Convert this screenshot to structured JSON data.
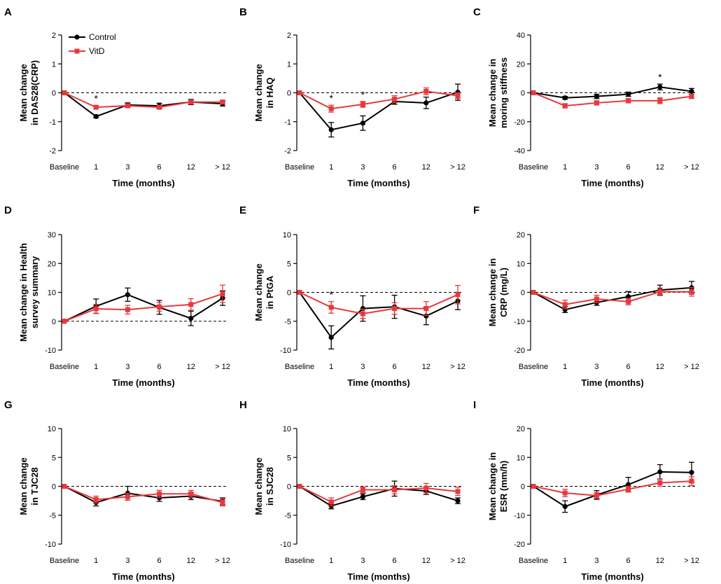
{
  "legend": {
    "control_label": "Control",
    "vitd_label": "VitD"
  },
  "colors": {
    "control": "#000000",
    "vitd": "#e8383d",
    "zero_line": "#000000"
  },
  "chart_data": [
    {
      "type": "line",
      "panel": "A",
      "ylabel_lines": [
        "Mean change",
        "in DAS28(CRP)"
      ],
      "xlabel": "Time (months)",
      "categories": [
        "Baseline",
        "1",
        "3",
        "6",
        "12",
        "> 12"
      ],
      "ylim": [
        -2,
        2
      ],
      "yticks": [
        -2,
        -1,
        0,
        1,
        2
      ],
      "series": [
        {
          "name": "Control",
          "values": [
            0,
            -0.82,
            -0.42,
            -0.45,
            -0.32,
            -0.38
          ],
          "errors": [
            0,
            0.05,
            0.07,
            0.09,
            0.09,
            0.08
          ]
        },
        {
          "name": "VitD",
          "values": [
            0,
            -0.5,
            -0.45,
            -0.5,
            -0.32,
            -0.32
          ],
          "errors": [
            0,
            0.06,
            0.06,
            0.06,
            0.06,
            0.06
          ]
        }
      ],
      "significance": [
        {
          "category": "1",
          "label": "*"
        }
      ],
      "legend_position": "top-left"
    },
    {
      "type": "line",
      "panel": "B",
      "ylabel_lines": [
        "Mean change",
        "in HAQ"
      ],
      "xlabel": "Time (months)",
      "categories": [
        "Baseline",
        "1",
        "3",
        "6",
        "12",
        "> 12"
      ],
      "ylim": [
        -2,
        2
      ],
      "yticks": [
        -2,
        -1,
        0,
        1,
        2
      ],
      "series": [
        {
          "name": "Control",
          "values": [
            0,
            -1.28,
            -1.05,
            -0.3,
            -0.35,
            0.02
          ],
          "errors": [
            0,
            0.25,
            0.25,
            0.1,
            0.2,
            0.28
          ]
        },
        {
          "name": "VitD",
          "values": [
            0,
            -0.55,
            -0.4,
            -0.22,
            0.05,
            -0.1
          ],
          "errors": [
            0,
            0.12,
            0.1,
            0.12,
            0.12,
            0.1
          ]
        }
      ],
      "significance": [
        {
          "category": "1",
          "label": "*"
        },
        {
          "category": "3",
          "label": "*"
        }
      ]
    },
    {
      "type": "line",
      "panel": "C",
      "ylabel_lines": [
        "Mean change in",
        "moring stiffness"
      ],
      "xlabel": "Time (months)",
      "categories": [
        "Baseline",
        "1",
        "3",
        "6",
        "12",
        "> 12"
      ],
      "ylim": [
        -40,
        40
      ],
      "yticks": [
        -40,
        -20,
        0,
        20,
        40
      ],
      "series": [
        {
          "name": "Control",
          "values": [
            0,
            -3.5,
            -2.5,
            -1,
            4,
            1
          ],
          "errors": [
            0,
            1,
            1.5,
            1.5,
            2,
            2
          ]
        },
        {
          "name": "VitD",
          "values": [
            0,
            -9,
            -7,
            -5.5,
            -5.5,
            -2.5
          ],
          "errors": [
            0,
            1.5,
            1.5,
            1.5,
            2,
            1.5
          ]
        }
      ],
      "significance": [
        {
          "category": "12",
          "label": "*"
        }
      ]
    },
    {
      "type": "line",
      "panel": "D",
      "ylabel_lines": [
        "Mean change  in Health",
        "survey summary"
      ],
      "xlabel": "Time (months)",
      "categories": [
        "Baseline",
        "1",
        "3",
        "6",
        "12",
        "> 12"
      ],
      "ylim": [
        -10,
        30
      ],
      "yticks": [
        -10,
        0,
        10,
        20,
        30
      ],
      "series": [
        {
          "name": "Control",
          "values": [
            0,
            5.2,
            9.2,
            4.8,
            1,
            8
          ],
          "errors": [
            0,
            2.5,
            2.3,
            2.4,
            2.5,
            2.5
          ]
        },
        {
          "name": "VitD",
          "values": [
            0,
            4.3,
            4,
            5,
            5.8,
            9.5
          ],
          "errors": [
            0,
            1.5,
            1.5,
            1.5,
            2,
            3
          ]
        }
      ],
      "significance": []
    },
    {
      "type": "line",
      "panel": "E",
      "ylabel_lines": [
        "Mean change",
        "in PtGA"
      ],
      "xlabel": "Time (months)",
      "categories": [
        "Baseline",
        "1",
        "3",
        "6",
        "12",
        "> 12"
      ],
      "ylim": [
        -10,
        10
      ],
      "yticks": [
        -10,
        -5,
        0,
        5,
        10
      ],
      "series": [
        {
          "name": "Control",
          "values": [
            0,
            -7.8,
            -2.8,
            -2.5,
            -4.1,
            -1.5
          ],
          "errors": [
            0,
            2,
            2.2,
            2,
            1.5,
            1.5
          ]
        },
        {
          "name": "VitD",
          "values": [
            0,
            -2.6,
            -3.7,
            -2.8,
            -2.8,
            -0.4
          ],
          "errors": [
            0,
            1,
            0.8,
            1,
            1.2,
            1.6
          ]
        }
      ],
      "significance": [
        {
          "category": "1",
          "label": "*"
        }
      ]
    },
    {
      "type": "line",
      "panel": "F",
      "ylabel_lines": [
        "Mean change in",
        "CRP (mg/L)"
      ],
      "xlabel": "Time (months)",
      "categories": [
        "Baseline",
        "1",
        "3",
        "6",
        "12",
        "> 12"
      ],
      "ylim": [
        -20,
        20
      ],
      "yticks": [
        -20,
        -10,
        0,
        10,
        20
      ],
      "series": [
        {
          "name": "Control",
          "values": [
            0,
            -6,
            -3.5,
            -1.5,
            0.8,
            1.6
          ],
          "errors": [
            0,
            1,
            1,
            1.8,
            1.7,
            2.2
          ]
        },
        {
          "name": "VitD",
          "values": [
            0,
            -4.2,
            -2.3,
            -3.2,
            0.2,
            0.2
          ],
          "errors": [
            0,
            1.5,
            1.3,
            1.1,
            1.3,
            1.5
          ]
        }
      ],
      "significance": []
    },
    {
      "type": "line",
      "panel": "G",
      "ylabel_lines": [
        "Mean change",
        "in TJC28"
      ],
      "xlabel": "Time (months)",
      "categories": [
        "Baseline",
        "1",
        "3",
        "6",
        "12",
        "> 12"
      ],
      "ylim": [
        -10,
        10
      ],
      "yticks": [
        -10,
        -5,
        0,
        5,
        10
      ],
      "series": [
        {
          "name": "Control",
          "values": [
            0,
            -2.8,
            -1.2,
            -2,
            -1.7,
            -2.6
          ],
          "errors": [
            0,
            0.6,
            1.2,
            0.6,
            0.6,
            0.6
          ]
        },
        {
          "name": "VitD",
          "values": [
            0,
            -2.3,
            -1.8,
            -1.3,
            -1.3,
            -2.8
          ],
          "errors": [
            0,
            0.6,
            0.6,
            0.6,
            0.6,
            0.6
          ]
        }
      ],
      "significance": []
    },
    {
      "type": "line",
      "panel": "H",
      "ylabel_lines": [
        "Mean change",
        "in SJC28"
      ],
      "xlabel": "Time (months)",
      "categories": [
        "Baseline",
        "1",
        "3",
        "6",
        "12",
        "> 12"
      ],
      "ylim": [
        -10,
        10
      ],
      "yticks": [
        -10,
        -5,
        0,
        5,
        10
      ],
      "series": [
        {
          "name": "Control",
          "values": [
            0,
            -3.4,
            -1.8,
            -0.4,
            -0.8,
            -2.5
          ],
          "errors": [
            0,
            0.5,
            0.5,
            1.3,
            0.6,
            0.5
          ]
        },
        {
          "name": "VitD",
          "values": [
            0,
            -2.7,
            -0.6,
            -0.6,
            -0.3,
            -0.9
          ],
          "errors": [
            0,
            0.7,
            0.5,
            0.7,
            0.8,
            0.7
          ]
        }
      ],
      "significance": []
    },
    {
      "type": "line",
      "panel": "I",
      "ylabel_lines": [
        "Mean change in",
        "ESR (mm/h)"
      ],
      "xlabel": "Time (months)",
      "categories": [
        "Baseline",
        "1",
        "3",
        "6",
        "12",
        "> 12"
      ],
      "ylim": [
        -20,
        20
      ],
      "yticks": [
        -20,
        -10,
        0,
        10,
        20
      ],
      "series": [
        {
          "name": "Control",
          "values": [
            0,
            -7,
            -3,
            0.6,
            5,
            4.8
          ],
          "errors": [
            0,
            2,
            1.5,
            2.5,
            2.5,
            3.5
          ]
        },
        {
          "name": "VitD",
          "values": [
            0,
            -2.3,
            -3.2,
            -1,
            1.2,
            1.8
          ],
          "errors": [
            0,
            1.3,
            1,
            1,
            1.2,
            1.5
          ]
        }
      ],
      "significance": []
    }
  ]
}
